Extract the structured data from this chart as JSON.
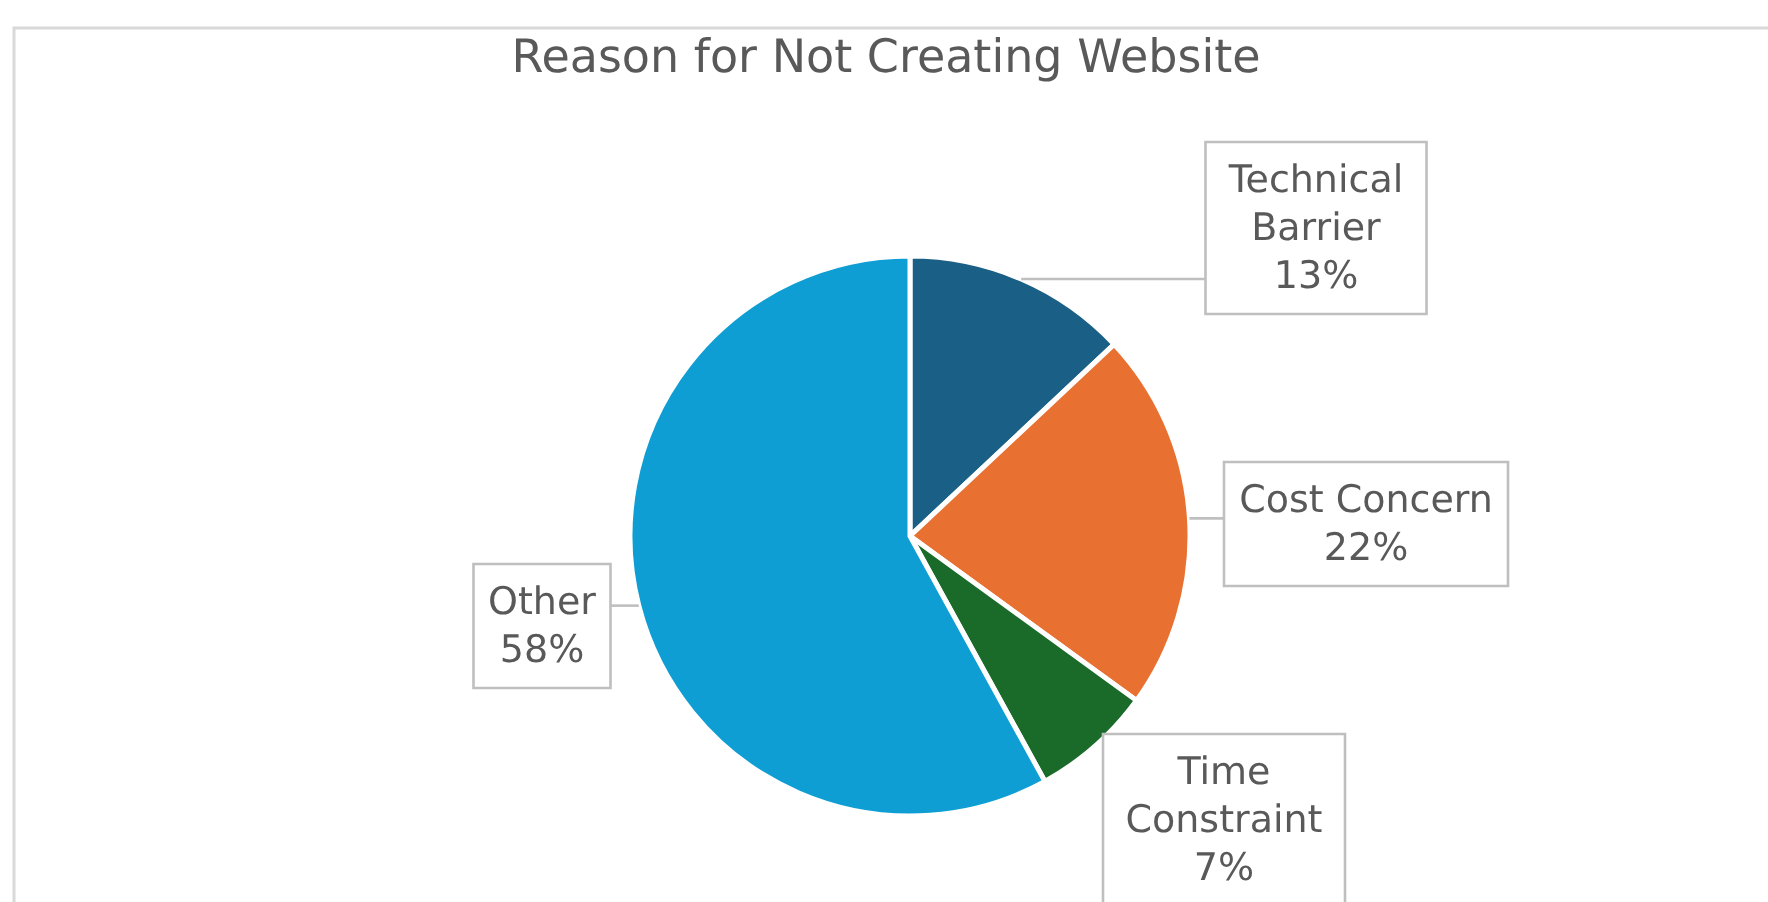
{
  "chart_data": {
    "type": "pie",
    "title": "Reason for Not Creating Website",
    "categories": [
      "Technical Barrier",
      "Cost Concern",
      "Time Constraint",
      "Other"
    ],
    "values": [
      13,
      22,
      7,
      58
    ],
    "value_labels": [
      "13%",
      "22%",
      "7%",
      "58%"
    ],
    "colors": [
      "#1a5f85",
      "#e87030",
      "#1a6b2a",
      "#0e9ed4"
    ]
  }
}
